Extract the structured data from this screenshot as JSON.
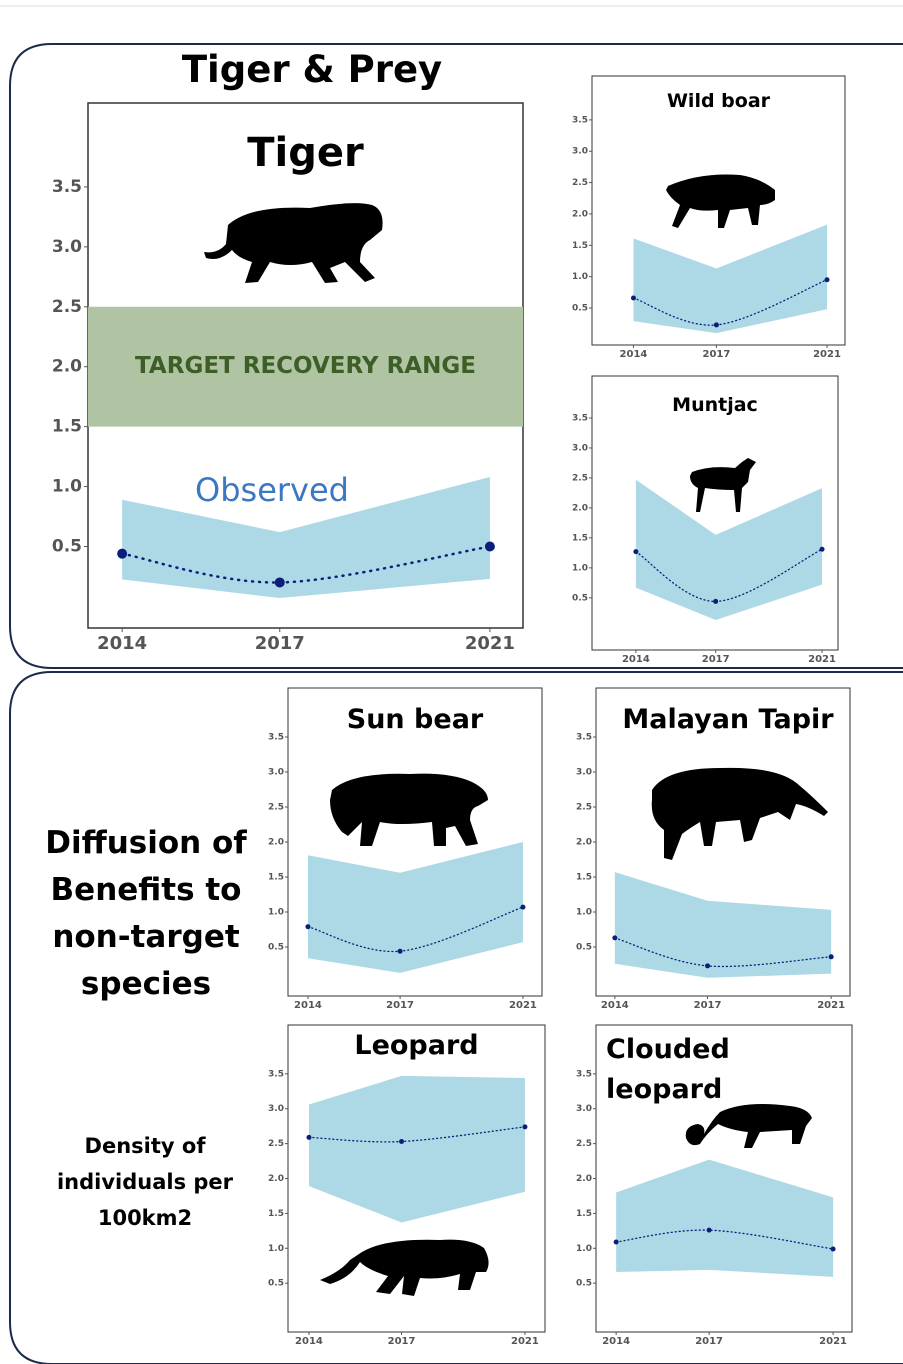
{
  "panel_titles": {
    "top": "Tiger & Prey",
    "bottom": "Diffusion of Benefits to non-target species",
    "unit": "Density of individuals per 100km2"
  },
  "chart_data": [
    {
      "type": "line",
      "title": "Tiger",
      "x": [
        2014,
        2017,
        2021
      ],
      "values": [
        0.44,
        0.2,
        0.5
      ],
      "lower": [
        0.225,
        0.07,
        0.23
      ],
      "upper": [
        0.89,
        0.62,
        1.08
      ],
      "target_range": [
        1.5,
        2.5
      ],
      "target_label": "TARGET RECOVERY RANGE",
      "annotation": "Observed",
      "color": "#0a1f7a",
      "band_color": "#add8e6",
      "target_color": "#b0c4a4",
      "xlim": [
        2013.35,
        2021.63
      ],
      "xticks": [
        2014,
        2017,
        2021
      ],
      "ylim": [
        -0.18,
        4.2
      ],
      "yticks": [
        0.5,
        {
          "value": 1,
          "label": "1.0"
        },
        1.5,
        {
          "value": 2,
          "label": "2.0"
        },
        2.5,
        {
          "value": 3,
          "label": "3.0"
        },
        3.5
      ]
    },
    {
      "type": "line",
      "title": "Wild boar",
      "x": [
        2014,
        2017,
        2021
      ],
      "values": [
        0.66,
        0.23,
        0.95
      ],
      "lower": [
        0.29,
        0.1,
        0.48
      ],
      "upper": [
        1.61,
        1.13,
        1.83
      ],
      "color": "#0a1f7a",
      "band_color": "#add8e6",
      "xlim": [
        2012.5,
        2021.65
      ],
      "xticks": [
        2014,
        2017,
        2021
      ],
      "ylim": [
        -0.09,
        4.2
      ],
      "yticks": [
        0.5,
        {
          "value": 1,
          "label": "1.0"
        },
        1.5,
        {
          "value": 2,
          "label": "2.0"
        },
        2.5,
        {
          "value": 3,
          "label": "3.0"
        },
        3.5
      ]
    },
    {
      "type": "line",
      "title": "Muntjac",
      "x": [
        2014,
        2017,
        2021
      ],
      "values": [
        1.27,
        0.44,
        1.31
      ],
      "lower": [
        0.67,
        0.13,
        0.72
      ],
      "upper": [
        2.47,
        1.55,
        2.33
      ],
      "color": "#0a1f7a",
      "band_color": "#add8e6",
      "xlim": [
        2012.35,
        2021.6
      ],
      "xticks": [
        2014,
        2017,
        2021
      ],
      "ylim": [
        -0.37,
        4.2
      ],
      "yticks": [
        0.5,
        {
          "value": 1,
          "label": "1.0"
        },
        1.5,
        {
          "value": 2,
          "label": "2.0"
        },
        2.5,
        {
          "value": 3,
          "label": "3.0"
        },
        3.5
      ]
    },
    {
      "type": "line",
      "title": "Sun bear",
      "x": [
        2014,
        2017,
        2021
      ],
      "values": [
        0.79,
        0.44,
        1.07
      ],
      "lower": [
        0.34,
        0.13,
        0.57
      ],
      "upper": [
        1.81,
        1.56,
        2.0
      ],
      "color": "#0a1f7a",
      "band_color": "#add8e6",
      "xlim": [
        2013.35,
        2021.62
      ],
      "xticks": [
        2014,
        2017,
        2021
      ],
      "ylim": [
        -0.2,
        4.2
      ],
      "yticks": [
        0.5,
        {
          "value": 1,
          "label": "1.0"
        },
        1.5,
        {
          "value": 2,
          "label": "2.0"
        },
        2.5,
        {
          "value": 3,
          "label": "3.0"
        },
        3.5
      ]
    },
    {
      "type": "line",
      "title": "Malayan Tapir",
      "x": [
        2014,
        2017,
        2021
      ],
      "values": [
        0.63,
        0.23,
        0.36
      ],
      "lower": [
        0.26,
        0.06,
        0.12
      ],
      "upper": [
        1.57,
        1.16,
        1.03
      ],
      "color": "#0a1f7a",
      "band_color": "#add8e6",
      "xlim": [
        2013.39,
        2021.61
      ],
      "xticks": [
        2014,
        2017,
        2021
      ],
      "ylim": [
        -0.2,
        4.2
      ],
      "yticks": [
        0.5,
        {
          "value": 1,
          "label": "1.0"
        },
        1.5,
        {
          "value": 2,
          "label": "2.0"
        },
        2.5,
        {
          "value": 3,
          "label": "3.0"
        },
        3.5
      ]
    },
    {
      "type": "line",
      "title": "Leopard",
      "x": [
        2014,
        2017,
        2021
      ],
      "values": [
        2.59,
        2.53,
        2.74
      ],
      "lower": [
        1.89,
        1.37,
        1.81
      ],
      "upper": [
        3.06,
        3.47,
        3.44
      ],
      "color": "#0a1f7a",
      "band_color": "#add8e6",
      "xlim": [
        2013.32,
        2021.65
      ],
      "xticks": [
        2014,
        2017,
        2021
      ],
      "ylim": [
        -0.2,
        4.2
      ],
      "yticks": [
        0.5,
        {
          "value": 1,
          "label": "1.0"
        },
        1.5,
        {
          "value": 2,
          "label": "2.0"
        },
        2.5,
        {
          "value": 3,
          "label": "3.0"
        },
        3.5
      ]
    },
    {
      "type": "line",
      "title": "Clouded leopard",
      "x": [
        2014,
        2017,
        2021
      ],
      "values": [
        1.09,
        1.26,
        0.99
      ],
      "lower": [
        0.66,
        0.69,
        0.59
      ],
      "upper": [
        1.8,
        2.27,
        1.73
      ],
      "color": "#0a1f7a",
      "band_color": "#add8e6",
      "xlim": [
        2013.35,
        2021.61
      ],
      "xticks": [
        2014,
        2017,
        2021
      ],
      "ylim": [
        -0.2,
        4.2
      ],
      "yticks": [
        0.5,
        {
          "value": 1,
          "label": "1.0"
        },
        1.5,
        {
          "value": 2,
          "label": "2.0"
        },
        2.5,
        {
          "value": 3,
          "label": "3.0"
        },
        3.5
      ]
    }
  ]
}
